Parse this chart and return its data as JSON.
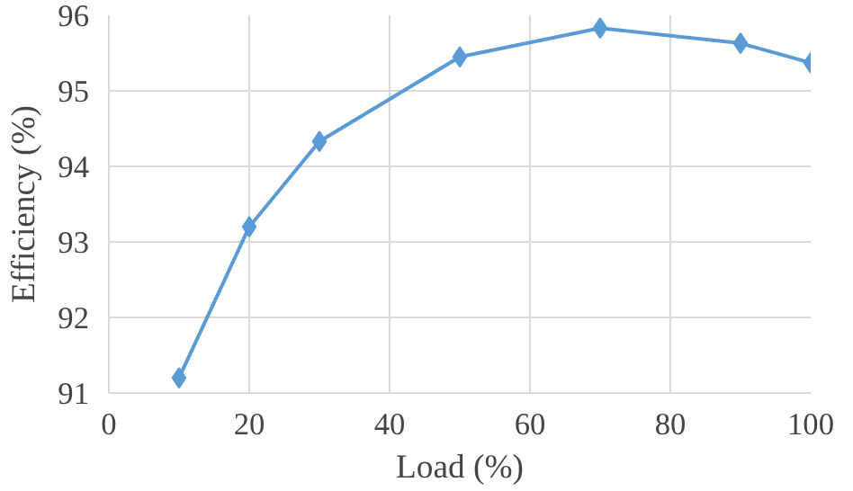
{
  "chart_data": {
    "type": "line",
    "xlabel": "Load (%)",
    "ylabel": "Efficiency (%)",
    "x": [
      10,
      20,
      30,
      50,
      70,
      90,
      100
    ],
    "series": [
      {
        "color": "#5b9bd5",
        "values": [
          91.2,
          93.2,
          94.33,
          95.45,
          95.83,
          95.63,
          95.37
        ]
      }
    ],
    "xlim": [
      0,
      100
    ],
    "xticks": [
      0,
      20,
      40,
      60,
      80,
      100
    ],
    "ylim": [
      91,
      96
    ],
    "yticks": [
      91,
      92,
      93,
      94,
      95,
      96
    ],
    "grid": true,
    "marker": "diamond",
    "line_style": "solid"
  }
}
